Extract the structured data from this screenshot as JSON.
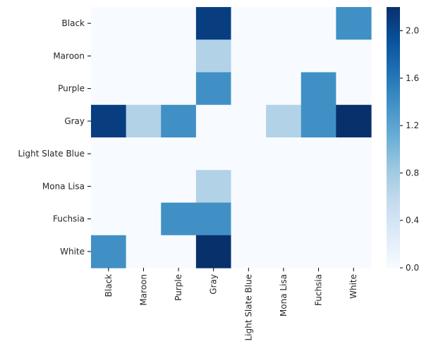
{
  "chart_data": {
    "type": "heatmap",
    "x_categories": [
      "Black",
      "Maroon",
      "Purple",
      "Gray",
      "Light Slate Blue",
      "Mona Lisa",
      "Fuchsia",
      "White"
    ],
    "y_categories": [
      "Black",
      "Maroon",
      "Purple",
      "Gray",
      "Light Slate Blue",
      "Mona Lisa",
      "Fuchsia",
      "White"
    ],
    "values": [
      [
        0.0,
        0.0,
        0.0,
        2.08,
        0.0,
        0.0,
        0.0,
        1.39
      ],
      [
        0.0,
        0.0,
        0.0,
        0.69,
        0.0,
        0.0,
        0.0,
        0.0
      ],
      [
        0.0,
        0.0,
        0.0,
        1.39,
        0.0,
        0.0,
        1.39,
        0.0
      ],
      [
        2.08,
        0.69,
        1.39,
        0.0,
        0.0,
        0.69,
        1.39,
        2.2
      ],
      [
        0.0,
        0.0,
        0.0,
        0.0,
        0.0,
        0.0,
        0.0,
        0.0
      ],
      [
        0.0,
        0.0,
        0.0,
        0.69,
        0.0,
        0.0,
        0.0,
        0.0
      ],
      [
        0.0,
        0.0,
        1.39,
        1.39,
        0.0,
        0.0,
        0.0,
        0.0
      ],
      [
        1.39,
        0.0,
        0.0,
        2.2,
        0.0,
        0.0,
        0.0,
        0.0
      ]
    ],
    "colorscale": "Blues",
    "vmin": 0.0,
    "vmax": 2.2,
    "colorbar_ticks": [
      "0.0",
      "0.4",
      "0.8",
      "1.2",
      "1.6",
      "2.0"
    ],
    "colorbar_tick_values": [
      0.0,
      0.4,
      0.8,
      1.2,
      1.6,
      2.0
    ],
    "colors": {
      "ramp": [
        "#f7fbff",
        "#deebf7",
        "#c6dbef",
        "#9ecae1",
        "#6baed6",
        "#4292c6",
        "#2171b5",
        "#08519c",
        "#08306b"
      ]
    }
  }
}
